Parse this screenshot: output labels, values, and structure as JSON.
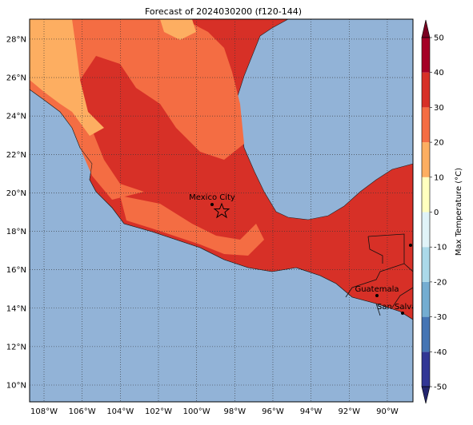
{
  "map": {
    "title": "Forecast of 2024030200 (f120-144)",
    "lon_ticks": [
      {
        "value": -108,
        "label": "108°W"
      },
      {
        "value": -106,
        "label": "106°W"
      },
      {
        "value": -104,
        "label": "104°W"
      },
      {
        "value": -102,
        "label": "102°W"
      },
      {
        "value": -100,
        "label": "100°W"
      },
      {
        "value": -98,
        "label": "98°W"
      },
      {
        "value": -96,
        "label": "96°W"
      },
      {
        "value": -94,
        "label": "94°W"
      },
      {
        "value": -92,
        "label": "92°W"
      },
      {
        "value": -90,
        "label": "90°W"
      }
    ],
    "lat_ticks": [
      {
        "value": 10,
        "label": "10°N"
      },
      {
        "value": 12,
        "label": "12°N"
      },
      {
        "value": 14,
        "label": "14°N"
      },
      {
        "value": 16,
        "label": "16°N"
      },
      {
        "value": 18,
        "label": "18°N"
      },
      {
        "value": 20,
        "label": "20°N"
      },
      {
        "value": 22,
        "label": "22°N"
      },
      {
        "value": 24,
        "label": "24°N"
      },
      {
        "value": 26,
        "label": "26°N"
      },
      {
        "value": 28,
        "label": "28°N"
      }
    ],
    "colorbar": {
      "label": "Max Temperature (°C)",
      "ticks": [
        -50,
        -40,
        -30,
        -20,
        -10,
        0,
        10,
        20,
        30,
        40,
        50
      ],
      "colors": [
        "#313695",
        "#4575b4",
        "#74add1",
        "#abd9e9",
        "#e0f3f8",
        "#ffffbf",
        "#fdae61",
        "#f46d43",
        "#d73027",
        "#a50026"
      ],
      "extend_colors": [
        "#23256e",
        "#7a0020"
      ]
    },
    "places": [
      "Mexico City",
      "Guatemala",
      "San Salvador"
    ]
  }
}
